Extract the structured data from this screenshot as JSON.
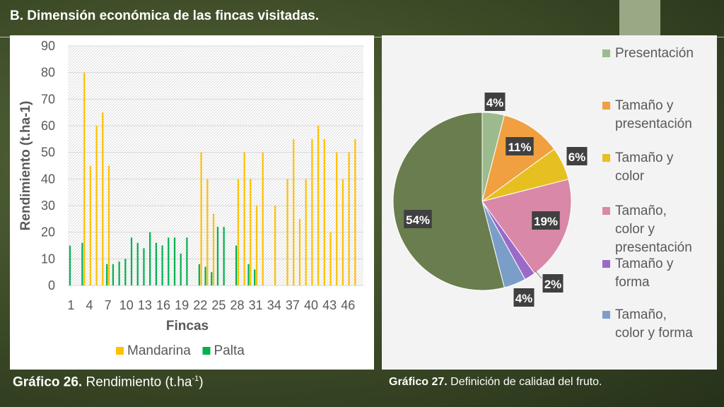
{
  "slide": {
    "title": "B. Dimensión económica de las fincas visitadas.",
    "caption_left": {
      "bold": "Gráfico 26.",
      "text": " Rendimiento (t.ha",
      "sup": "-1",
      "tail": ")"
    },
    "caption_right": {
      "bold": "Gráfico 27.",
      "text": " Definición de calidad del fruto."
    }
  },
  "chart_data": [
    {
      "type": "bar",
      "title": "",
      "xlabel": "Fincas",
      "ylabel": "Rendimiento (t.ha-1)",
      "ylim": [
        0,
        90
      ],
      "yticks": [
        0,
        10,
        20,
        30,
        40,
        50,
        60,
        70,
        80,
        90
      ],
      "xticks": [
        "1",
        "4",
        "7",
        "10",
        "13",
        "16",
        "19",
        "22",
        "25",
        "28",
        "31",
        "34",
        "37",
        "40",
        "43",
        "46"
      ],
      "grid": true,
      "legend_position": "bottom",
      "categories": [
        1,
        2,
        3,
        4,
        5,
        6,
        7,
        8,
        9,
        10,
        11,
        12,
        13,
        14,
        15,
        16,
        17,
        18,
        19,
        20,
        21,
        22,
        23,
        24,
        25,
        26,
        27,
        28,
        29,
        30,
        31,
        32,
        33,
        34,
        35,
        36,
        37,
        38,
        39,
        40,
        41,
        42,
        43,
        44,
        45,
        46,
        47,
        48
      ],
      "series": [
        {
          "name": "Mandarina",
          "color": "#ffc000",
          "values": [
            0,
            0,
            80,
            45,
            60,
            65,
            45,
            0,
            0,
            0,
            0,
            0,
            0,
            0,
            0,
            0,
            0,
            0,
            0,
            0,
            0,
            50,
            40,
            27,
            0,
            0,
            0,
            40,
            50,
            40,
            30,
            50,
            0,
            30,
            0,
            40,
            55,
            25,
            40,
            55,
            60,
            55,
            20,
            50,
            40,
            50,
            55,
            0
          ]
        },
        {
          "name": "Palta",
          "color": "#00b050",
          "values": [
            15,
            0,
            16,
            0,
            0,
            0,
            8,
            8,
            9,
            10,
            18,
            16,
            14,
            20,
            16,
            15,
            18,
            18,
            12,
            18,
            0,
            8,
            7,
            5,
            22,
            22,
            0,
            15,
            0,
            8,
            6,
            0,
            0,
            0,
            0,
            0,
            0,
            0,
            0,
            0,
            0,
            0,
            0,
            0,
            0,
            0,
            0,
            0
          ]
        }
      ]
    },
    {
      "type": "pie",
      "legend_position": "right",
      "series": [
        {
          "name": "Presentación",
          "value": 4,
          "label": "4%",
          "color": "#9bbb8e"
        },
        {
          "name": "Tamaño y presentación",
          "value": 11,
          "label": "11%",
          "color": "#f0a040"
        },
        {
          "name": "Tamaño y color",
          "value": 6,
          "label": "6%",
          "color": "#e6c020"
        },
        {
          "name": "Tamaño, color y presentación",
          "value": 19,
          "label": "19%",
          "color": "#d988a8"
        },
        {
          "name": "Tamaño y forma",
          "value": 2,
          "label": "2%",
          "color": "#9b6ac8"
        },
        {
          "name": "Tamaño, color y forma",
          "value": 4,
          "label": "4%",
          "color": "#7b9ec8"
        },
        {
          "name": "",
          "value": 54,
          "label": "54%",
          "color": "#6a7d4e"
        }
      ],
      "legend": [
        [
          "Presentación"
        ],
        [
          "Tamaño y",
          "presentación"
        ],
        [
          "Tamaño y",
          "color"
        ],
        [
          "Tamaño,",
          "color y",
          "presentación"
        ],
        [
          "Tamaño y",
          "forma"
        ],
        [
          "Tamaño,",
          "color y forma"
        ]
      ]
    }
  ]
}
